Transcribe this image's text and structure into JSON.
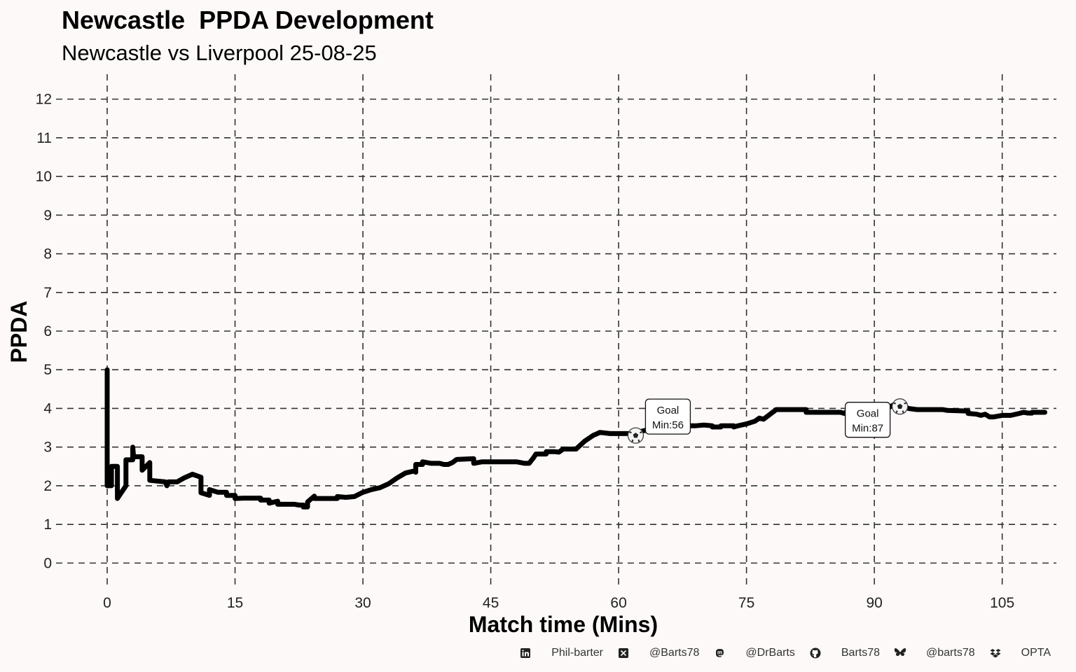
{
  "chart_data": {
    "type": "line",
    "title": "Newcastle  PPDA Development",
    "subtitle": "Newcastle vs Liverpool 25-08-25",
    "xlabel": "Match time (Mins)",
    "ylabel": "PPDA",
    "xlim": [
      -6,
      113
    ],
    "ylim": [
      -0.5,
      12.5
    ],
    "xticks": [
      0,
      15,
      30,
      45,
      60,
      75,
      90,
      105
    ],
    "yticks": [
      0,
      1,
      2,
      3,
      4,
      5,
      6,
      7,
      8,
      9,
      10,
      11,
      12
    ],
    "grid": true,
    "series": [
      {
        "color": "#000000",
        "points": [
          [
            0,
            5.0
          ],
          [
            0,
            2.0
          ],
          [
            0.5,
            2.0
          ],
          [
            0.5,
            2.5
          ],
          [
            1.2,
            2.5
          ],
          [
            1.2,
            1.67
          ],
          [
            2.2,
            2.0
          ],
          [
            2.2,
            2.67
          ],
          [
            3.0,
            2.67
          ],
          [
            3.0,
            3.0
          ],
          [
            3.1,
            2.75
          ],
          [
            4.1,
            2.75
          ],
          [
            4.1,
            2.4
          ],
          [
            5.0,
            2.6
          ],
          [
            5.0,
            2.14
          ],
          [
            6.8,
            2.1
          ],
          [
            7.0,
            2.0
          ],
          [
            7.2,
            2.1
          ],
          [
            8.2,
            2.1
          ],
          [
            9.0,
            2.2
          ],
          [
            10.0,
            2.3
          ],
          [
            11.0,
            2.22
          ],
          [
            11.0,
            1.82
          ],
          [
            12.0,
            1.75
          ],
          [
            12.0,
            1.9
          ],
          [
            13.0,
            1.83
          ],
          [
            14.0,
            1.83
          ],
          [
            14.0,
            1.75
          ],
          [
            15.0,
            1.75
          ],
          [
            15.0,
            1.67
          ],
          [
            16.0,
            1.68
          ],
          [
            17.0,
            1.68
          ],
          [
            18.0,
            1.68
          ],
          [
            18.0,
            1.63
          ],
          [
            19.0,
            1.63
          ],
          [
            19.0,
            1.55
          ],
          [
            20.0,
            1.6
          ],
          [
            20.0,
            1.52
          ],
          [
            22.0,
            1.52
          ],
          [
            22.5,
            1.5
          ],
          [
            23.0,
            1.5
          ],
          [
            23.0,
            1.45
          ],
          [
            23.5,
            1.45
          ],
          [
            23.5,
            1.58
          ],
          [
            24.3,
            1.73
          ],
          [
            24.3,
            1.67
          ],
          [
            27.0,
            1.67
          ],
          [
            27.0,
            1.72
          ],
          [
            28.0,
            1.7
          ],
          [
            29.0,
            1.72
          ],
          [
            30.0,
            1.83
          ],
          [
            31.0,
            1.9
          ],
          [
            32.0,
            1.95
          ],
          [
            33.0,
            2.05
          ],
          [
            34.0,
            2.2
          ],
          [
            35.0,
            2.33
          ],
          [
            36.0,
            2.38
          ],
          [
            36.2,
            2.35
          ],
          [
            36.2,
            2.55
          ],
          [
            37.0,
            2.55
          ],
          [
            37.0,
            2.62
          ],
          [
            38.0,
            2.58
          ],
          [
            39.0,
            2.58
          ],
          [
            39.5,
            2.55
          ],
          [
            40.0,
            2.55
          ],
          [
            40.5,
            2.6
          ],
          [
            41.0,
            2.68
          ],
          [
            43.0,
            2.7
          ],
          [
            43.0,
            2.58
          ],
          [
            44.0,
            2.62
          ],
          [
            48.0,
            2.62
          ],
          [
            49.0,
            2.58
          ],
          [
            49.5,
            2.58
          ],
          [
            50.0,
            2.72
          ],
          [
            50.3,
            2.82
          ],
          [
            51.5,
            2.82
          ],
          [
            51.5,
            2.88
          ],
          [
            52.5,
            2.88
          ],
          [
            53.0,
            2.87
          ],
          [
            53.5,
            2.95
          ],
          [
            55.0,
            2.95
          ],
          [
            56.0,
            3.15
          ],
          [
            57.0,
            3.3
          ],
          [
            57.5,
            3.35
          ],
          [
            57.8,
            3.38
          ],
          [
            59.0,
            3.35
          ],
          [
            61.8,
            3.35
          ],
          [
            62.5,
            3.4
          ],
          [
            63.5,
            3.45
          ],
          [
            65.0,
            3.5
          ],
          [
            66.5,
            3.55
          ],
          [
            68.0,
            3.55
          ],
          [
            69.0,
            3.55
          ],
          [
            70.0,
            3.57
          ],
          [
            71.0,
            3.55
          ],
          [
            71.0,
            3.52
          ],
          [
            72.0,
            3.52
          ],
          [
            72.0,
            3.55
          ],
          [
            73.5,
            3.55
          ],
          [
            73.5,
            3.52
          ],
          [
            74.0,
            3.55
          ],
          [
            75.0,
            3.6
          ],
          [
            76.0,
            3.67
          ],
          [
            76.5,
            3.75
          ],
          [
            77.0,
            3.72
          ],
          [
            78.5,
            3.97
          ],
          [
            80.0,
            3.97
          ],
          [
            82.0,
            3.97
          ],
          [
            82.0,
            3.9
          ],
          [
            84.0,
            3.9
          ],
          [
            86.0,
            3.9
          ],
          [
            86.5,
            3.87
          ],
          [
            87.0,
            3.97
          ],
          [
            88.0,
            4.05
          ],
          [
            89.0,
            4.05
          ],
          [
            90.0,
            4.05
          ],
          [
            91.0,
            4.05
          ],
          [
            91.5,
            4.0
          ],
          [
            92.5,
            4.12
          ],
          [
            93.5,
            4.05
          ],
          [
            94.0,
            4.0
          ],
          [
            95.0,
            3.97
          ],
          [
            97.0,
            3.97
          ],
          [
            98.0,
            3.97
          ],
          [
            98.5,
            3.95
          ],
          [
            101.0,
            3.93
          ],
          [
            101.0,
            3.87
          ],
          [
            102.0,
            3.85
          ],
          [
            102.5,
            3.82
          ],
          [
            103.0,
            3.85
          ],
          [
            103.5,
            3.78
          ],
          [
            104.0,
            3.78
          ],
          [
            105.0,
            3.82
          ],
          [
            106.0,
            3.82
          ],
          [
            107.0,
            3.87
          ],
          [
            107.5,
            3.9
          ],
          [
            108.0,
            3.88
          ],
          [
            108.5,
            3.88
          ],
          [
            108.5,
            3.9
          ],
          [
            110.0,
            3.9
          ]
        ]
      }
    ],
    "annotations": [
      {
        "x": 62.0,
        "y": 3.3,
        "icon": "football-icon",
        "line1": "Goal",
        "line2": "Min:56",
        "label_side": "right-up"
      },
      {
        "x": 93.0,
        "y": 4.05,
        "icon": "football-icon",
        "line1": "Goal",
        "line2": "Min:87",
        "label_side": "left-down"
      }
    ]
  },
  "footer": {
    "items": [
      {
        "icon": "linkedin-icon",
        "label": "Phil-barter"
      },
      {
        "icon": "x-icon",
        "label": "@Barts78"
      },
      {
        "icon": "mastodon-icon",
        "label": "@DrBarts"
      },
      {
        "icon": "github-icon",
        "label": "Barts78"
      },
      {
        "icon": "bluesky-icon",
        "label": "@barts78"
      },
      {
        "icon": "dropbox-icon",
        "label": "OPTA"
      }
    ]
  }
}
